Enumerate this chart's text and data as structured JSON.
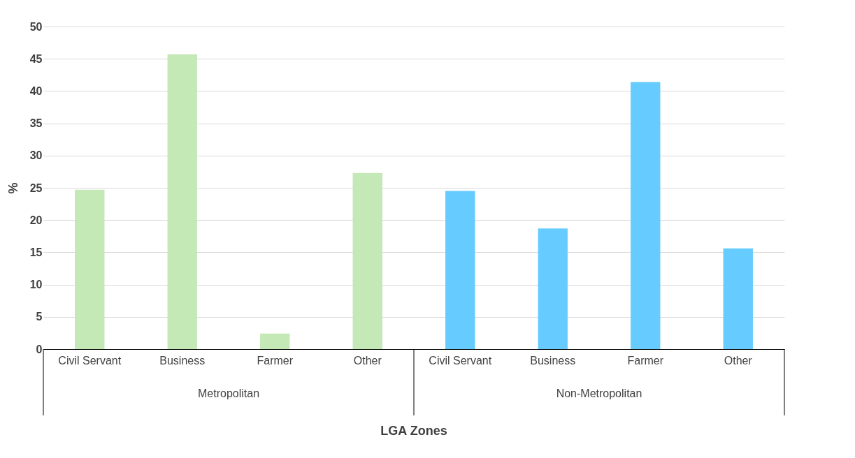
{
  "chart_data": {
    "type": "bar",
    "xlabel": "LGA Zones",
    "ylabel": "%",
    "categories": [
      "Civil Servant",
      "Business",
      "Farmer",
      "Other",
      "Civil Servant",
      "Business",
      "Farmer",
      "Other"
    ],
    "values": [
      24.7,
      45.7,
      2.4,
      27.3,
      24.5,
      18.7,
      41.4,
      15.6
    ],
    "colors": [
      "#c5e8b7",
      "#c5e8b7",
      "#c5e8b7",
      "#c5e8b7",
      "#66ccff",
      "#66ccff",
      "#66ccff",
      "#66ccff"
    ],
    "annotations": [
      "Metropolitan",
      "Non-Metropolitan"
    ],
    "ylim": [
      0,
      50
    ],
    "yticks": [
      0,
      5,
      10,
      15,
      20,
      25,
      30,
      35,
      40,
      45,
      50
    ],
    "grid": "y"
  }
}
